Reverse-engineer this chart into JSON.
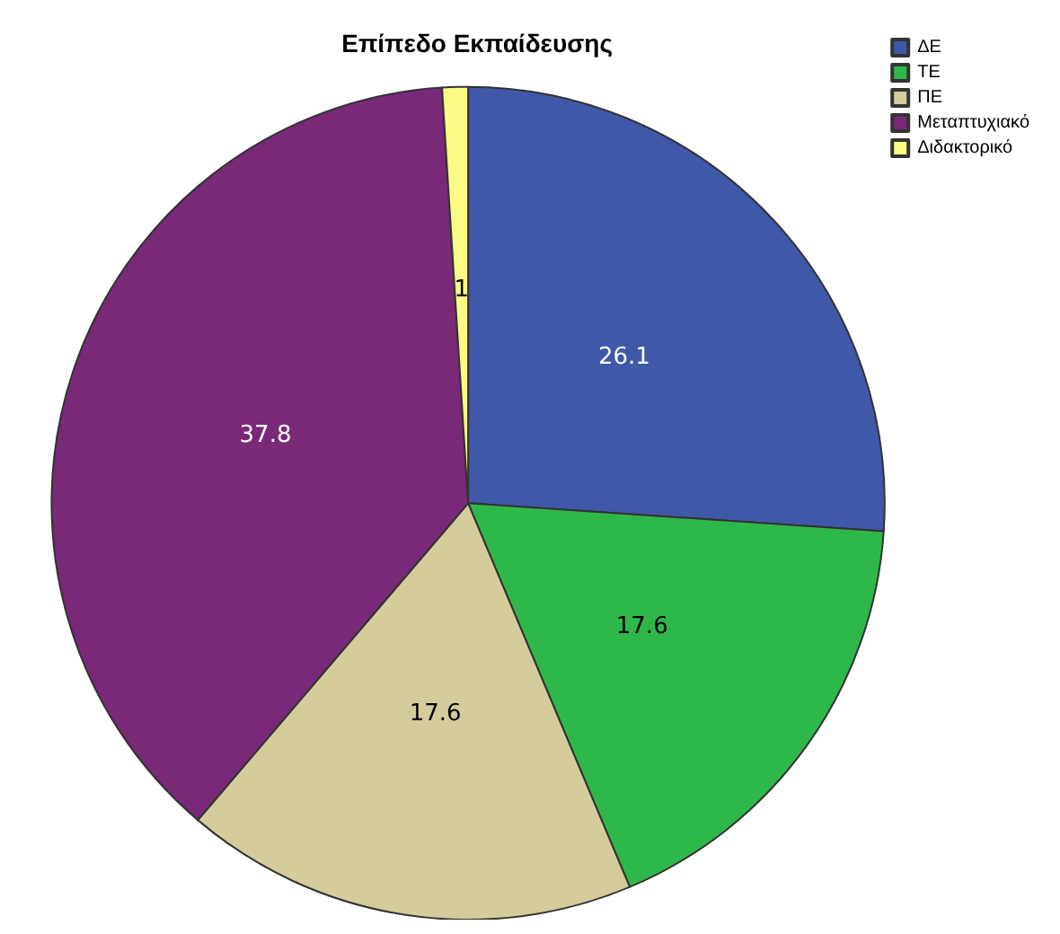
{
  "chart_data": {
    "type": "pie",
    "title": "Επίπεδο Εκπαίδευσης",
    "categories": [
      "ΔΕ",
      "ΤΕ",
      "ΠΕ",
      "Μεταπτυχιακό",
      "Διδακτορικό"
    ],
    "values": [
      26.1,
      17.6,
      17.6,
      37.8,
      1
    ],
    "colors": [
      "#3f58a8",
      "#2fb84a",
      "#d4cc9a",
      "#7a2878",
      "#fbfb88"
    ],
    "data_labels": true,
    "legend": "top right"
  }
}
